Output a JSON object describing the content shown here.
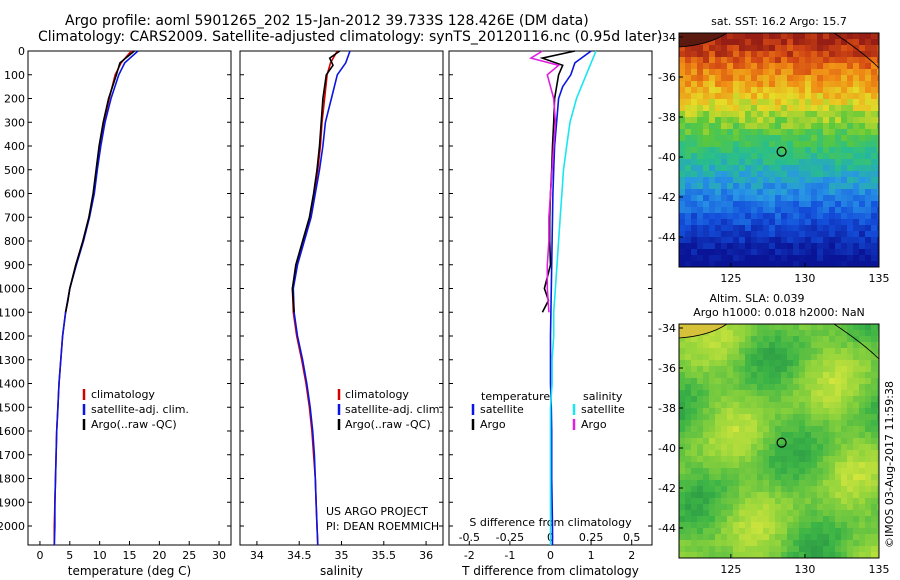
{
  "header": {
    "line1": "Argo profile: aoml 5901265_202 15-Jan-2012 39.733S 128.426E (DM data)",
    "line2": "Climatology: CARS2009. Satellite-adjusted climatology: synTS_20120116.nc (0.95d later)"
  },
  "colors": {
    "climatology": "#d40000",
    "satellite": "#0a16e0",
    "argo": "#000000",
    "argo_salinity": "#e020e0",
    "satellite_salinity": "#19e6f0"
  },
  "chart_data": [
    {
      "type": "line",
      "xlabel": "temperature (deg C)",
      "xlim": [
        -2,
        32
      ],
      "xticks": [
        "0",
        "5",
        "10",
        "15",
        "20",
        "25",
        "30"
      ],
      "ylim": [
        0,
        2080
      ],
      "yticks": [
        "0",
        "100",
        "200",
        "300",
        "400",
        "500",
        "600",
        "700",
        "800",
        "900",
        "1000",
        "1100",
        "1200",
        "1300",
        "1400",
        "1500",
        "1600",
        "1700",
        "1800",
        "1900",
        "2000"
      ],
      "legend": [
        "climatology",
        "satellite-adj. clim.",
        "Argo(..raw -QC)"
      ],
      "series": [
        {
          "name": "climatology",
          "y": [
            0,
            50,
            100,
            200,
            300,
            400,
            500,
            600,
            700,
            800,
            900,
            1000,
            1100,
            1200,
            1300,
            1400,
            1500,
            1600,
            1700,
            1800,
            1900,
            2000,
            2080
          ],
          "x": [
            15.3,
            13.6,
            12.6,
            11.6,
            10.7,
            10.0,
            9.5,
            9.0,
            8.2,
            7.2,
            6.0,
            5.0,
            4.3,
            3.8,
            3.5,
            3.2,
            3.0,
            2.8,
            2.7,
            2.6,
            2.5,
            2.4,
            2.4
          ]
        },
        {
          "name": "satellite-adj. clim.",
          "y": [
            0,
            50,
            100,
            200,
            300,
            400,
            500,
            600,
            700,
            800,
            900,
            1000,
            1100,
            1200,
            1300,
            1400,
            1500,
            1600,
            1700,
            1800,
            1900,
            2000,
            2080
          ],
          "x": [
            16.4,
            14.2,
            13.2,
            11.9,
            10.9,
            10.2,
            9.6,
            9.1,
            8.3,
            7.3,
            6.1,
            5.0,
            4.3,
            3.8,
            3.5,
            3.2,
            3.0,
            2.8,
            2.7,
            2.6,
            2.5,
            2.5,
            2.4
          ]
        },
        {
          "name": "Argo(..raw -QC)",
          "y": [
            0,
            50,
            100,
            200,
            300,
            400,
            500,
            600,
            700,
            800,
            900,
            1000,
            1050,
            1100
          ],
          "x": [
            15.8,
            13.4,
            12.8,
            11.5,
            10.6,
            9.9,
            9.4,
            8.9,
            8.2,
            7.2,
            6.0,
            5.0,
            4.7,
            4.3
          ]
        }
      ]
    },
    {
      "type": "line",
      "xlabel": "salinity",
      "xlim": [
        33.8,
        36.2
      ],
      "xticks": [
        "34",
        "34.5",
        "35",
        "35.5",
        "36"
      ],
      "ylim": [
        0,
        2080
      ],
      "legend": [
        "climatology",
        "satellite-adj. clim.",
        "Argo(..raw -QC)"
      ],
      "annotation": [
        "US ARGO PROJECT",
        "PI: DEAN ROEMMICH"
      ],
      "series": [
        {
          "name": "climatology",
          "y": [
            0,
            50,
            100,
            200,
            300,
            400,
            500,
            600,
            700,
            800,
            900,
            1000,
            1100,
            1200,
            1300,
            1400,
            1500,
            1600,
            1700,
            1800,
            1900,
            2000,
            2080
          ],
          "x": [
            34.95,
            34.87,
            34.83,
            34.8,
            34.77,
            34.75,
            34.72,
            34.68,
            34.63,
            34.55,
            34.47,
            34.42,
            34.43,
            34.47,
            34.53,
            34.58,
            34.62,
            34.65,
            34.67,
            34.69,
            34.7,
            34.71,
            34.72
          ]
        },
        {
          "name": "satellite-adj. clim.",
          "y": [
            0,
            50,
            100,
            200,
            300,
            400,
            500,
            600,
            700,
            800,
            900,
            1000,
            1100,
            1200,
            1300,
            1400,
            1500,
            1600,
            1700,
            1800,
            1900,
            2000,
            2080
          ],
          "x": [
            35.1,
            35.05,
            34.95,
            34.88,
            34.81,
            34.78,
            34.74,
            34.69,
            34.64,
            34.56,
            34.48,
            34.43,
            34.44,
            34.48,
            34.54,
            34.59,
            34.63,
            34.66,
            34.68,
            34.69,
            34.7,
            34.71,
            34.72
          ]
        },
        {
          "name": "Argo(..raw -QC)",
          "y": [
            0,
            30,
            60,
            100,
            200,
            300,
            400,
            500,
            600,
            700,
            800,
            900,
            1000,
            1100
          ],
          "x": [
            34.98,
            34.86,
            34.9,
            34.82,
            34.78,
            34.76,
            34.74,
            34.71,
            34.67,
            34.62,
            34.54,
            34.46,
            34.42,
            34.44
          ]
        }
      ]
    },
    {
      "type": "line",
      "xlabel": "T difference from climatology",
      "xlabel_top": "S difference from climatology",
      "xlim": [
        -2.5,
        2.5
      ],
      "xticks": [
        "-2",
        "-1",
        "0",
        "1",
        "2"
      ],
      "xticks_top": [
        "-0.5",
        "-0.25",
        "0",
        "0.25",
        "0.5"
      ],
      "ylim": [
        0,
        2080
      ],
      "legend_titles": [
        "temperature",
        "salinity"
      ],
      "legend": [
        "satellite",
        "Argo",
        "satellite",
        "Argo"
      ],
      "series": [
        {
          "name": "temperature satellite",
          "y": [
            0,
            50,
            100,
            150,
            200,
            300,
            400,
            500,
            600,
            700,
            800,
            900,
            1000,
            1100,
            1200,
            1300,
            1400,
            1500,
            1600,
            1700,
            1800,
            1900,
            2000,
            2080
          ],
          "x": [
            1.0,
            0.6,
            0.5,
            0.3,
            0.2,
            0.15,
            0.1,
            0.08,
            0.06,
            0.05,
            0.04,
            0.03,
            0.02,
            0.01,
            0.0,
            0.0,
            0.0,
            0.02,
            0.03,
            0.03,
            0.03,
            0.04,
            0.05,
            0.05
          ]
        },
        {
          "name": "temperature Argo",
          "y": [
            0,
            30,
            60,
            100,
            200,
            300,
            400,
            500,
            600,
            700,
            800,
            900,
            1000,
            1050,
            1100
          ],
          "x": [
            0.6,
            -0.2,
            0.3,
            0.2,
            0.1,
            0.08,
            0.05,
            0.03,
            0.0,
            -0.02,
            -0.02,
            0.0,
            -0.15,
            -0.05,
            -0.2
          ]
        },
        {
          "name": "salinity satellite",
          "y": [
            0,
            50,
            100,
            200,
            300,
            400,
            500,
            600,
            700,
            800,
            900,
            1000,
            1100,
            1200,
            1300,
            1400,
            1500,
            1600,
            1700,
            1800,
            1900,
            2000,
            2080
          ],
          "x": [
            0.28,
            0.25,
            0.22,
            0.16,
            0.12,
            0.1,
            0.08,
            0.07,
            0.06,
            0.05,
            0.04,
            0.03,
            0.02,
            0.02,
            0.01,
            0.01,
            0.0,
            0.0,
            0.0,
            0.0,
            0.0,
            0.0,
            0.0
          ]
        },
        {
          "name": "salinity Argo",
          "y": [
            0,
            30,
            60,
            100,
            200,
            300,
            400,
            500,
            600,
            700,
            800,
            900,
            1000,
            1100
          ],
          "x": [
            -0.05,
            -0.12,
            0.05,
            -0.02,
            0.02,
            0.03,
            0.02,
            0.01,
            0.0,
            -0.01,
            -0.01,
            -0.02,
            -0.02,
            -0.01
          ]
        }
      ]
    },
    {
      "type": "heatmap",
      "title": "sat. SST: 16.2  Argo: 15.7",
      "xlim": [
        121.5,
        135
      ],
      "ylim": [
        -45.5,
        -33.8
      ],
      "xticks": [
        "125",
        "130",
        "135"
      ],
      "yticks": [
        "-34",
        "-36",
        "-38",
        "-40",
        "-42",
        "-44"
      ],
      "marker": {
        "lon": 128.426,
        "lat": -39.733
      }
    },
    {
      "type": "heatmap",
      "title_lines": [
        "Altim. SLA: 0.039",
        "Argo h1000: 0.018  h2000: NaN"
      ],
      "xlim": [
        121.5,
        135
      ],
      "ylim": [
        -45.5,
        -33.8
      ],
      "xticks": [
        "125",
        "130",
        "135"
      ],
      "yticks": [
        "-34",
        "-36",
        "-38",
        "-40",
        "-42",
        "-44"
      ],
      "marker": {
        "lon": 128.426,
        "lat": -39.733
      }
    }
  ],
  "footer": {
    "credit": "©IMOS 03-Aug-2017 11:59:38"
  }
}
